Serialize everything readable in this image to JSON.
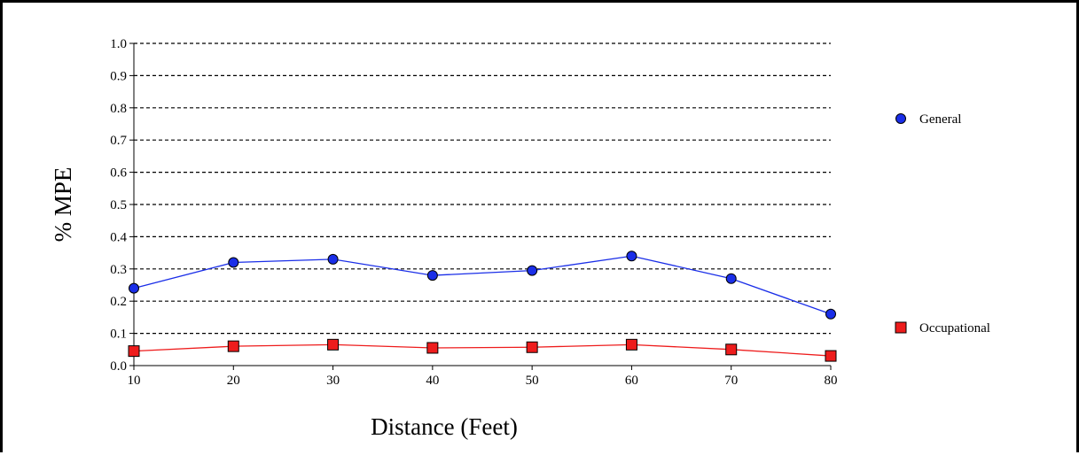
{
  "chart_data": {
    "type": "line",
    "xlabel": "Distance (Feet)",
    "ylabel": "% MPE",
    "x": [
      10,
      20,
      30,
      40,
      50,
      60,
      70,
      80
    ],
    "xlim": [
      10,
      80
    ],
    "ylim": [
      0,
      1
    ],
    "x_ticks": [
      "10",
      "20",
      "30",
      "40",
      "50",
      "60",
      "70",
      "80"
    ],
    "y_ticks": [
      "0.0",
      "0.1",
      "0.2",
      "0.3",
      "0.4",
      "0.5",
      "0.6",
      "0.7",
      "0.8",
      "0.9",
      "1.0"
    ],
    "grid": "horizontal dashed",
    "legend_position": "right",
    "series": [
      {
        "name": "General",
        "marker": "circle",
        "color": "#1a2ee8",
        "values": [
          0.24,
          0.32,
          0.33,
          0.28,
          0.295,
          0.34,
          0.27,
          0.16
        ]
      },
      {
        "name": "Occupational",
        "marker": "square",
        "color": "#ee1c1c",
        "values": [
          0.045,
          0.06,
          0.065,
          0.055,
          0.057,
          0.065,
          0.05,
          0.03
        ]
      }
    ]
  }
}
